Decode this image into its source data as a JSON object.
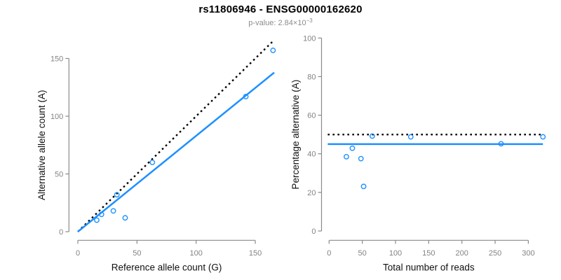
{
  "header": {
    "title": "rs11806946 - ENSG00000162620",
    "subtitle_prefix": "p-value: 2.84×10",
    "subtitle_exponent": "−3"
  },
  "colors": {
    "point_blue": "#1E90FF",
    "fit_line_blue": "#1E90FF",
    "reference_line_black": "#000000",
    "axis_gray": "#8a8a8a",
    "tick_label_gray": "#838383",
    "subtitle_gray": "#8c8c8c"
  },
  "chart_data": [
    {
      "id": "allele-count-scatter",
      "type": "scatter",
      "xlabel": "Reference allele count (G)",
      "ylabel": "Alternative allele count (A)",
      "x": [
        16,
        20,
        30,
        33,
        40,
        63,
        142,
        165
      ],
      "y": [
        10,
        15,
        18,
        32,
        12,
        60,
        117,
        157
      ],
      "xticks": [
        0,
        50,
        100,
        150
      ],
      "yticks": [
        0,
        50,
        100,
        150
      ],
      "xlim": [
        0,
        167
      ],
      "ylim": [
        0,
        167
      ],
      "grid": false,
      "legend": "none",
      "lines": [
        {
          "name": "identity-line",
          "style": "dotted",
          "color": "#000000",
          "x1": 0,
          "y1": 0,
          "x2": 165,
          "y2": 165
        },
        {
          "name": "fit-line",
          "style": "solid",
          "color": "#1E90FF",
          "x1": 0,
          "y1": 0,
          "x2": 166,
          "y2": 137.8
        }
      ]
    },
    {
      "id": "percentage-scatter",
      "type": "scatter",
      "xlabel": "Total number of reads",
      "ylabel": "Percentage alternative (A)",
      "x": [
        26,
        35,
        48,
        52,
        65,
        123,
        259,
        322
      ],
      "y": [
        38.5,
        42.9,
        37.5,
        23.1,
        49.2,
        48.8,
        45.2,
        48.8
      ],
      "xticks": [
        0,
        50,
        100,
        150,
        200,
        250,
        300
      ],
      "yticks": [
        0,
        20,
        40,
        60,
        80,
        100
      ],
      "xlim": [
        0,
        322
      ],
      "ylim": [
        0,
        100
      ],
      "grid": false,
      "legend": "none",
      "lines": [
        {
          "name": "expected-ratio-line",
          "style": "dotted",
          "color": "#000000",
          "x1": -2,
          "y1": 50,
          "x2": 322,
          "y2": 50
        },
        {
          "name": "fitted-ratio-line",
          "style": "solid",
          "color": "#1E90FF",
          "x1": -2,
          "y1": 45,
          "x2": 322,
          "y2": 45
        }
      ]
    }
  ]
}
